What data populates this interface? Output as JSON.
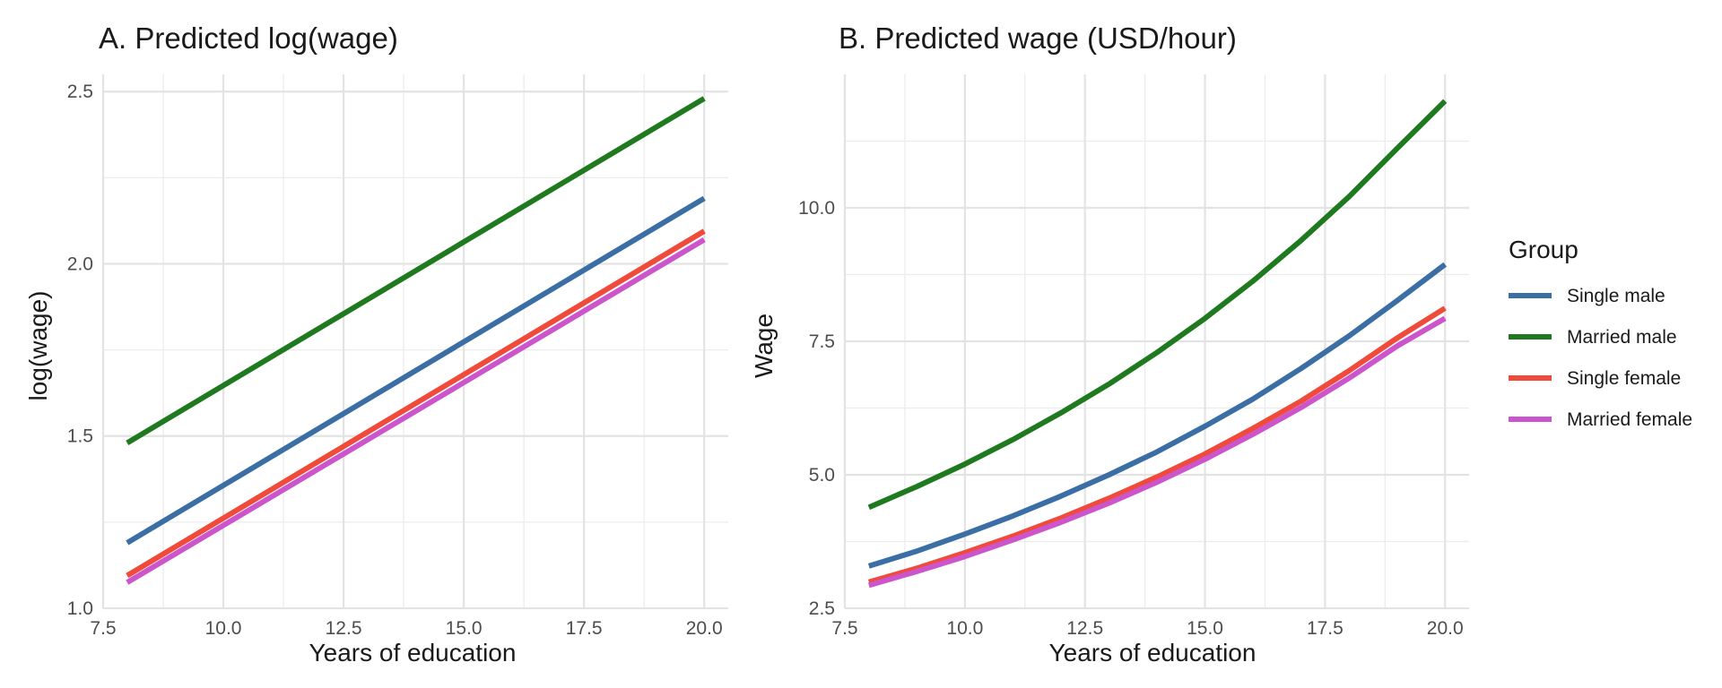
{
  "chart_data": [
    {
      "type": "line",
      "title": "A. Predicted log(wage)",
      "xlabel": "Years of education",
      "ylabel": "log(wage)",
      "xlim": [
        7.5,
        20.5
      ],
      "ylim": [
        1.0,
        2.55
      ],
      "xticks": [
        7.5,
        10.0,
        12.5,
        15.0,
        17.5,
        20.0
      ],
      "xtick_labels": [
        "7.5",
        "10.0",
        "12.5",
        "15.0",
        "17.5",
        "20.0"
      ],
      "yticks": [
        1.0,
        1.5,
        2.0,
        2.5
      ],
      "ytick_labels": [
        "1.0",
        "1.5",
        "2.0",
        "2.5"
      ],
      "x": [
        8,
        20
      ],
      "grid": true,
      "series": [
        {
          "name": "Single male",
          "color": "#3A6EA5",
          "values": [
            1.19,
            2.19
          ]
        },
        {
          "name": "Married male",
          "color": "#1F7A1F",
          "values": [
            1.48,
            2.48
          ]
        },
        {
          "name": "Single female",
          "color": "#F04A3A",
          "values": [
            1.095,
            2.095
          ]
        },
        {
          "name": "Married female",
          "color": "#CC55CC",
          "values": [
            1.075,
            2.07
          ]
        }
      ]
    },
    {
      "type": "line",
      "title": "B. Predicted wage (USD/hour)",
      "xlabel": "Years of education",
      "ylabel": "Wage",
      "xlim": [
        7.5,
        20.5
      ],
      "ylim": [
        2.5,
        12.5
      ],
      "xticks": [
        7.5,
        10.0,
        12.5,
        15.0,
        17.5,
        20.0
      ],
      "xtick_labels": [
        "7.5",
        "10.0",
        "12.5",
        "15.0",
        "17.5",
        "20.0"
      ],
      "yticks": [
        2.5,
        5.0,
        7.5,
        10.0
      ],
      "ytick_labels": [
        "2.5",
        "5.0",
        "7.5",
        "10.0"
      ],
      "x": [
        8,
        9,
        10,
        11,
        12,
        13,
        14,
        15,
        16,
        17,
        18,
        19,
        20
      ],
      "grid": true,
      "series": [
        {
          "name": "Single male",
          "color": "#3A6EA5",
          "values": [
            3.29,
            3.57,
            3.89,
            4.23,
            4.6,
            5.0,
            5.43,
            5.91,
            6.42,
            6.99,
            7.6,
            8.26,
            8.94
          ]
        },
        {
          "name": "Married male",
          "color": "#1F7A1F",
          "values": [
            4.39,
            4.78,
            5.2,
            5.66,
            6.16,
            6.7,
            7.29,
            7.93,
            8.63,
            9.39,
            10.21,
            11.11,
            12.0
          ]
        },
        {
          "name": "Single female",
          "color": "#F04A3A",
          "values": [
            2.99,
            3.25,
            3.54,
            3.85,
            4.19,
            4.56,
            4.96,
            5.39,
            5.87,
            6.38,
            6.95,
            7.56,
            8.12
          ]
        },
        {
          "name": "Married female",
          "color": "#CC55CC",
          "values": [
            2.93,
            3.19,
            3.47,
            3.78,
            4.11,
            4.47,
            4.86,
            5.29,
            5.76,
            6.26,
            6.81,
            7.41,
            7.93
          ]
        }
      ]
    }
  ],
  "legend": {
    "title": "Group",
    "position": "right",
    "items": [
      {
        "label": "Single male",
        "color": "#3A6EA5"
      },
      {
        "label": "Married male",
        "color": "#1F7A1F"
      },
      {
        "label": "Single female",
        "color": "#F04A3A"
      },
      {
        "label": "Married female",
        "color": "#CC55CC"
      }
    ]
  }
}
